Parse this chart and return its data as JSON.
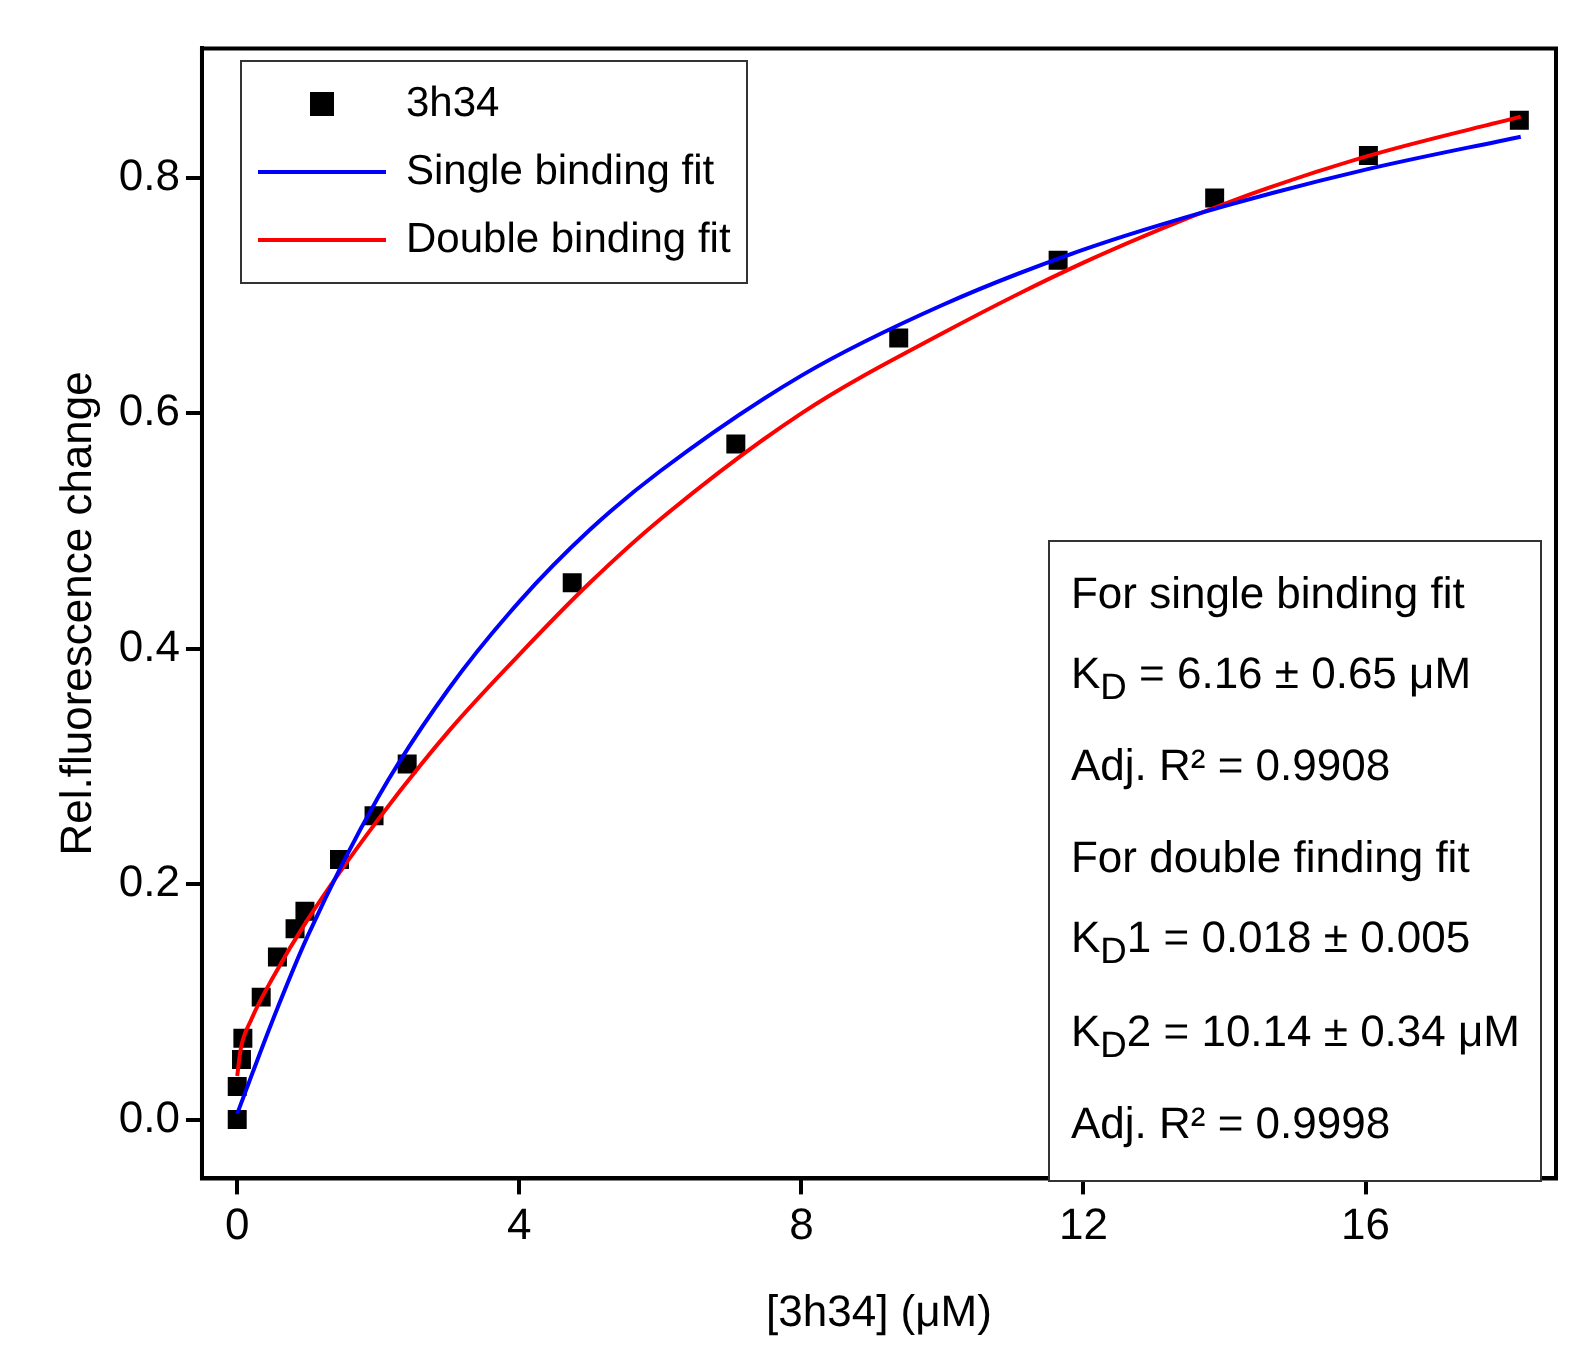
{
  "chart_data": {
    "type": "scatter",
    "xlabel": "[3h34] (μM)",
    "ylabel": "Rel.fluorescence change",
    "series": [
      {
        "name": "3h34",
        "type": "scatter",
        "marker": "square",
        "color": "#000000",
        "x": [
          0,
          0,
          0.06,
          0.08,
          0.34,
          0.57,
          0.82,
          0.96,
          1.45,
          1.94,
          2.41,
          4.75,
          7.07,
          9.38,
          11.64,
          13.86,
          16.04,
          18.18
        ],
        "values": [
          0,
          0.028,
          0.051,
          0.069,
          0.104,
          0.138,
          0.162,
          0.177,
          0.221,
          0.258,
          0.302,
          0.456,
          0.574,
          0.664,
          0.73,
          0.783,
          0.819,
          0.849
        ]
      },
      {
        "name": "Single binding fit",
        "type": "line",
        "marker": "none",
        "line_style": "solid",
        "color": "#0000ff",
        "x": [
          0,
          0.5,
          1,
          2,
          3,
          4,
          5,
          6,
          8,
          10,
          12,
          14,
          16,
          18.2
        ],
        "values": [
          0.005,
          0.084,
          0.156,
          0.274,
          0.366,
          0.44,
          0.501,
          0.551,
          0.632,
          0.692,
          0.739,
          0.776,
          0.807,
          0.835
        ]
      },
      {
        "name": "Double binding fit",
        "type": "line",
        "marker": "none",
        "line_style": "solid",
        "color": "#ff0000",
        "x": [
          0,
          0.05,
          0.2,
          0.5,
          1,
          2,
          3,
          4,
          5,
          6,
          8,
          10,
          12,
          14,
          16,
          18.2
        ],
        "values": [
          0.037,
          0.06,
          0.085,
          0.12,
          0.17,
          0.255,
          0.33,
          0.395,
          0.456,
          0.51,
          0.6,
          0.668,
          0.728,
          0.778,
          0.818,
          0.852
        ]
      }
    ],
    "xlim": [
      -0.5,
      18.7
    ],
    "xticks": [
      0,
      4,
      8,
      12,
      16
    ],
    "ylim": [
      -0.05,
      0.91
    ],
    "yticks": [
      {
        "value": 0,
        "label": "0.0"
      },
      {
        "value": 0.2,
        "label": "0.2"
      },
      {
        "value": 0.4,
        "label": "0.4"
      },
      {
        "value": 0.6,
        "label": "0.6"
      },
      {
        "value": 0.8,
        "label": "0.8"
      }
    ],
    "grid": false,
    "legend": "top left",
    "annotations": [
      "For single binding fit",
      "K$_{D}$ = 6.16 ± 0.65 μM",
      "Adj. R² = 0.9908",
      "For double finding fit",
      "K$_{D}$1 = 0.018 ± 0.005",
      "K$_{D}$2 = 10.14 ± 0.34 μM",
      "Adj. R² = 0.9998"
    ]
  }
}
